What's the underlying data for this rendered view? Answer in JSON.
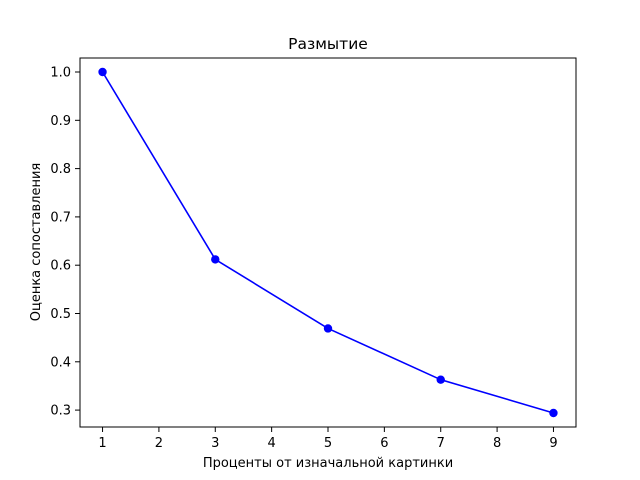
{
  "chart_data": {
    "type": "line",
    "title": "Размытие",
    "xlabel": "Проценты от изначальной картинки",
    "ylabel": "Оценка сопоставления",
    "x": [
      1,
      3,
      5,
      7,
      9
    ],
    "series": [
      {
        "values": [
          1.0,
          0.612,
          0.469,
          0.363,
          0.294
        ],
        "color": "#0000ff",
        "marker": "circle"
      }
    ],
    "xlim": [
      0.6,
      9.4
    ],
    "ylim": [
      0.265,
      1.029
    ],
    "xticks": [
      "1",
      "2",
      "3",
      "4",
      "5",
      "6",
      "7",
      "8",
      "9"
    ],
    "yticks": [
      "0.3",
      "0.4",
      "0.5",
      "0.6",
      "0.7",
      "0.8",
      "0.9",
      "1.0"
    ],
    "grid": false
  }
}
